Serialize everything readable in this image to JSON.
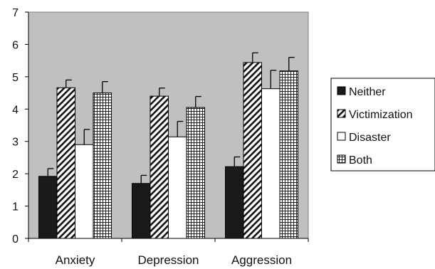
{
  "chart_data": {
    "type": "bar",
    "categories": [
      "Anxiety",
      "Depression",
      "Aggression"
    ],
    "series": [
      {
        "name": "Neither",
        "values": [
          1.92,
          1.7,
          2.22
        ],
        "errors": [
          0.24,
          0.25,
          0.3
        ],
        "fill": "#1a1a1a",
        "pattern": "solid"
      },
      {
        "name": "Victimization",
        "values": [
          4.66,
          4.4,
          5.44
        ],
        "errors": [
          0.24,
          0.25,
          0.3
        ],
        "fill": "#ffffff",
        "pattern": "diagonal"
      },
      {
        "name": "Disaster",
        "values": [
          2.9,
          3.14,
          4.63
        ],
        "errors": [
          0.47,
          0.48,
          0.57
        ],
        "fill": "#ffffff",
        "pattern": "none"
      },
      {
        "name": "Both",
        "values": [
          4.5,
          4.05,
          5.18
        ],
        "errors": [
          0.35,
          0.34,
          0.42
        ],
        "fill": "#ffffff",
        "pattern": "grid"
      }
    ],
    "y_ticks": [
      "0",
      "1",
      "2",
      "3",
      "4",
      "5",
      "6",
      "7"
    ],
    "ylim": [
      0,
      7
    ],
    "grid": false,
    "plot_background": "#c0c0c0",
    "legend": "right"
  }
}
